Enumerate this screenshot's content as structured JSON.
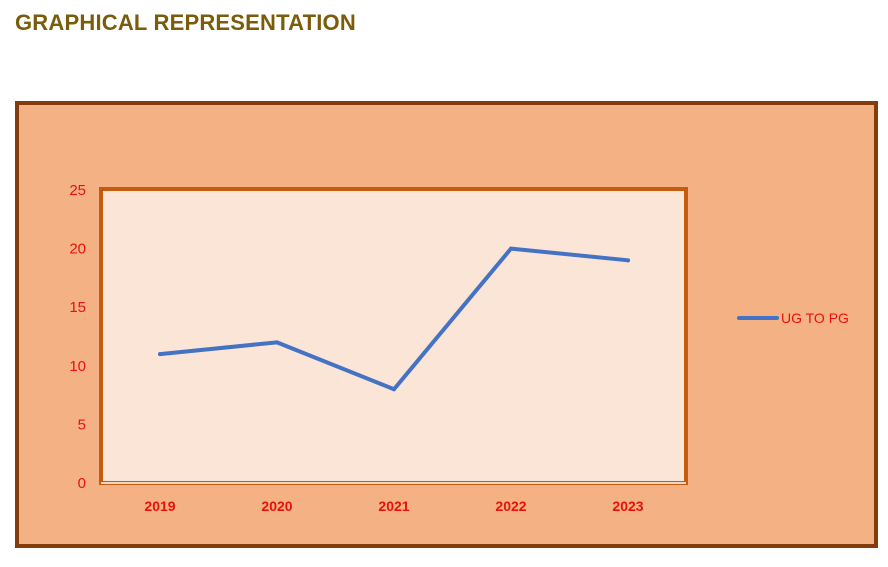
{
  "page": {
    "title": "GRAPHICAL REPRESENTATION"
  },
  "colors": {
    "title": "#7a5c0a",
    "outer_fill": "#f4b183",
    "outer_border": "#843c0c",
    "plot_fill": "#fbe5d6",
    "plot_border": "#c55a11",
    "series_line": "#4472c4",
    "tick_text": "#e8120c"
  },
  "chart_data": {
    "type": "line",
    "title": "",
    "xlabel": "",
    "ylabel": "",
    "categories": [
      "2019",
      "2020",
      "2021",
      "2022",
      "2023"
    ],
    "series": [
      {
        "name": "UG TO PG",
        "values": [
          11,
          12,
          8,
          20,
          19
        ]
      }
    ],
    "ylim": [
      0,
      25
    ],
    "yticks": [
      0,
      5,
      10,
      15,
      20,
      25
    ],
    "grid": false,
    "legend_position": "right"
  }
}
